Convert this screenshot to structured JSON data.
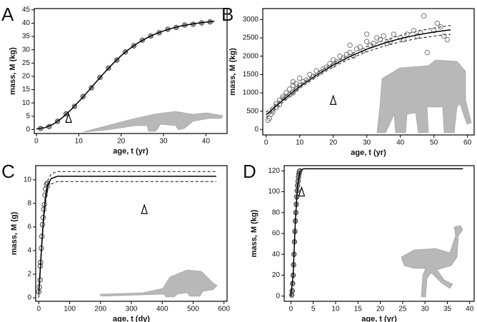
{
  "chart_data": [
    {
      "type": "scatter",
      "panel_label": "A",
      "xlabel": "age, t (yr)",
      "ylabel": "mass, M (kg)",
      "xlim": [
        -0.5,
        45
      ],
      "ylim": [
        -1.5,
        45.5
      ],
      "xticks": [
        0,
        10,
        20,
        30,
        40
      ],
      "yticks": [
        0,
        5,
        10,
        15,
        20,
        25,
        30,
        35,
        40,
        45
      ],
      "color": "#555555",
      "filled": true,
      "x": [
        1,
        3,
        5,
        7,
        9,
        11,
        13,
        15,
        17,
        19,
        21,
        23,
        25,
        27,
        29,
        31,
        33,
        35,
        37,
        39,
        41
      ],
      "values": [
        0.4,
        1.1,
        3.1,
        5.9,
        8.7,
        12.4,
        15.7,
        19.6,
        23.1,
        26.1,
        29.2,
        31.5,
        33.6,
        35.2,
        36.4,
        37.7,
        38.4,
        39.3,
        39.6,
        40.1,
        40.5
      ],
      "fit": {
        "x": [
          0,
          2,
          4,
          6,
          8,
          10,
          12,
          14,
          16,
          18,
          20,
          22,
          24,
          26,
          28,
          30,
          32,
          34,
          36,
          38,
          40,
          42
        ],
        "values": [
          0.2,
          0.7,
          2,
          4.3,
          7.2,
          10.5,
          14,
          17.7,
          21.3,
          24.7,
          27.8,
          30.4,
          32.6,
          34.4,
          35.9,
          37.1,
          38.1,
          38.9,
          39.5,
          40,
          40.4,
          40.7
        ]
      },
      "marker": {
        "x": 7.6,
        "y": 4.3
      }
    },
    {
      "type": "scatter",
      "panel_label": "B",
      "xlabel": "age, t (yr)",
      "ylabel": "mass, M (kg)",
      "xlim": [
        -1,
        62
      ],
      "ylim": [
        -150,
        3300
      ],
      "xticks": [
        0,
        10,
        20,
        30,
        40,
        50,
        60
      ],
      "yticks": [
        0,
        500,
        1000,
        1500,
        2000,
        2500,
        3000
      ],
      "color": "#777777",
      "filled": false,
      "x": [
        0.5,
        1,
        1.5,
        2,
        2,
        3,
        3,
        4,
        4,
        5,
        5,
        6,
        6,
        7,
        7,
        8,
        8,
        8,
        9,
        9,
        10,
        10,
        11,
        12,
        13,
        14,
        15,
        16,
        17,
        18,
        19,
        20,
        20,
        21,
        22,
        23,
        24,
        25,
        25,
        26,
        27,
        28,
        29,
        30,
        30,
        31,
        32,
        33,
        34,
        35,
        36,
        37,
        38,
        40,
        41,
        42,
        44,
        45,
        46,
        47,
        48,
        50,
        51,
        52,
        53,
        54
      ],
      "values": [
        250,
        300,
        420,
        480,
        550,
        600,
        700,
        680,
        800,
        850,
        900,
        900,
        1000,
        950,
        1100,
        1000,
        1200,
        1300,
        1100,
        1250,
        1200,
        1400,
        1300,
        1350,
        1500,
        1450,
        1600,
        1550,
        1650,
        1700,
        1800,
        1750,
        1900,
        1850,
        2000,
        1950,
        2050,
        2100,
        2300,
        2000,
        2200,
        2250,
        2150,
        2400,
        2600,
        2300,
        2350,
        2500,
        2450,
        2550,
        2350,
        2400,
        2600,
        2500,
        2450,
        2600,
        2700,
        2550,
        2650,
        3100,
        2100,
        2700,
        2900,
        2800,
        2550,
        2450
      ],
      "fit": {
        "x": [
          0,
          5,
          10,
          15,
          20,
          25,
          30,
          35,
          40,
          45,
          50,
          55
        ],
        "values": [
          400,
          800,
          1170,
          1480,
          1760,
          1990,
          2190,
          2350,
          2480,
          2580,
          2660,
          2720
        ],
        "lower": [
          330,
          740,
          1120,
          1430,
          1710,
          1930,
          2120,
          2270,
          2390,
          2480,
          2550,
          2600
        ],
        "upper": [
          470,
          860,
          1220,
          1530,
          1810,
          2050,
          2260,
          2430,
          2570,
          2680,
          2770,
          2840
        ]
      },
      "marker": {
        "x": 20,
        "y": 800
      }
    },
    {
      "type": "scatter",
      "panel_label": "C",
      "xlabel": "age, t (dy)",
      "ylabel": "mass, M (g)",
      "xlim": [
        -10,
        610
      ],
      "ylim": [
        -0.3,
        11.2
      ],
      "xticks": [
        0,
        100,
        200,
        300,
        400,
        500,
        600
      ],
      "yticks": [
        0,
        2,
        4,
        6,
        8,
        10
      ],
      "color": "#444444",
      "filled": false,
      "x": [
        0,
        2,
        4,
        5,
        6,
        8,
        10,
        12,
        14,
        16,
        18,
        20,
        22,
        25,
        28
      ],
      "values": [
        0.5,
        0.9,
        1.5,
        2.7,
        3,
        4.2,
        5.2,
        6.2,
        6.8,
        7.5,
        7.9,
        8.7,
        9.2,
        9.6,
        9.7
      ],
      "fit": {
        "x": [
          0,
          5,
          10,
          15,
          20,
          25,
          30,
          40,
          60,
          100,
          200,
          300,
          400,
          500,
          575
        ],
        "values": [
          0.3,
          2.5,
          4.7,
          6.6,
          8,
          9,
          9.6,
          10.1,
          10.3,
          10.3,
          10.3,
          10.3,
          10.3,
          10.3,
          10.3
        ],
        "lower": [
          0,
          2.2,
          4.4,
          6.3,
          7.6,
          8.6,
          9.2,
          9.65,
          9.85,
          9.85,
          9.85,
          9.85,
          9.85,
          9.85,
          9.85
        ],
        "upper": [
          0.6,
          2.8,
          5,
          6.9,
          8.4,
          9.4,
          10,
          10.5,
          10.7,
          10.7,
          10.7,
          10.7,
          10.7,
          10.7,
          10.7
        ]
      },
      "marker": {
        "x": 342,
        "y": 7.5
      }
    },
    {
      "type": "scatter",
      "panel_label": "D",
      "xlabel": "age, t (yr)",
      "ylabel": "mass, M (kg)",
      "xlim": [
        -1.5,
        41
      ],
      "ylim": [
        -5,
        125
      ],
      "xticks": [
        0,
        5,
        10,
        15,
        20,
        25,
        30,
        35,
        40
      ],
      "yticks": [
        0,
        20,
        40,
        60,
        80,
        100,
        120
      ],
      "color": "#444444",
      "filled": true,
      "x": [
        0.2,
        0.3,
        0.4,
        0.5,
        0.6,
        0.7,
        0.8,
        0.9,
        1,
        1.1,
        1.2,
        1.3,
        1.4,
        1.5,
        1.6,
        1.7,
        1.8,
        1.9,
        2
      ],
      "values": [
        1,
        5,
        12,
        20,
        30,
        40,
        52,
        62,
        72,
        80,
        88,
        95,
        101,
        106,
        110,
        114,
        117,
        119,
        120
      ],
      "fit": {
        "x": [
          0,
          0.5,
          1,
          1.5,
          2,
          2.5,
          3,
          5,
          10,
          20,
          30,
          38.5
        ],
        "values": [
          0,
          20,
          72,
          106,
          119,
          121.5,
          122,
          122,
          122,
          122,
          122,
          122
        ]
      },
      "marker": {
        "x": 2.4,
        "y": 100
      }
    }
  ]
}
